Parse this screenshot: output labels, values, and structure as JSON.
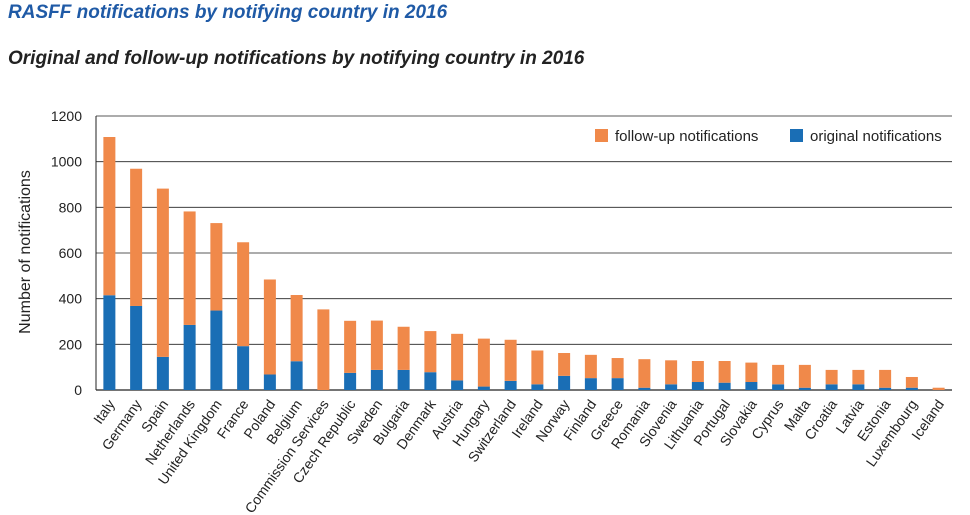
{
  "header": {
    "title": "RASFF notifications by notifying country in 2016",
    "subtitle": "Original and follow-up notifications by notifying country in 2016"
  },
  "chart_data": {
    "type": "bar",
    "stacked": true,
    "ylabel": "Number of notifications",
    "ylim": [
      0,
      1200
    ],
    "yticks": [
      0,
      200,
      400,
      600,
      800,
      1000,
      1200
    ],
    "grid": true,
    "legend_position": "top-right",
    "categories": [
      "Italy",
      "Germany",
      "Spain",
      "Netherlands",
      "United Kingdom",
      "France",
      "Poland",
      "Belgium",
      "Commission Services",
      "Czech Republic",
      "Sweden",
      "Bulgaria",
      "Denmark",
      "Austria",
      "Hungary",
      "Switzerland",
      "Ireland",
      "Norway",
      "Finland",
      "Greece",
      "Romania",
      "Slovenia",
      "Lithuania",
      "Portugal",
      "Slovakia",
      "Cyprus",
      "Malta",
      "Croatia",
      "Latvia",
      "Estonia",
      "Luxembourg",
      "Iceland"
    ],
    "series": [
      {
        "name": "original notifications",
        "color": "#1a6eb5",
        "values": [
          415,
          368,
          145,
          285,
          348,
          192,
          68,
          126,
          0,
          75,
          88,
          88,
          78,
          42,
          15,
          40,
          25,
          62,
          52,
          52,
          10,
          25,
          35,
          32,
          35,
          25,
          10,
          25,
          25,
          10,
          10,
          0
        ]
      },
      {
        "name": "follow-up notifications",
        "color": "#f0894a",
        "values": [
          693,
          601,
          737,
          497,
          383,
          455,
          416,
          290,
          353,
          228,
          216,
          189,
          180,
          204,
          210,
          180,
          148,
          100,
          102,
          88,
          125,
          105,
          92,
          95,
          85,
          85,
          100,
          63,
          63,
          78,
          47,
          10
        ]
      }
    ]
  }
}
